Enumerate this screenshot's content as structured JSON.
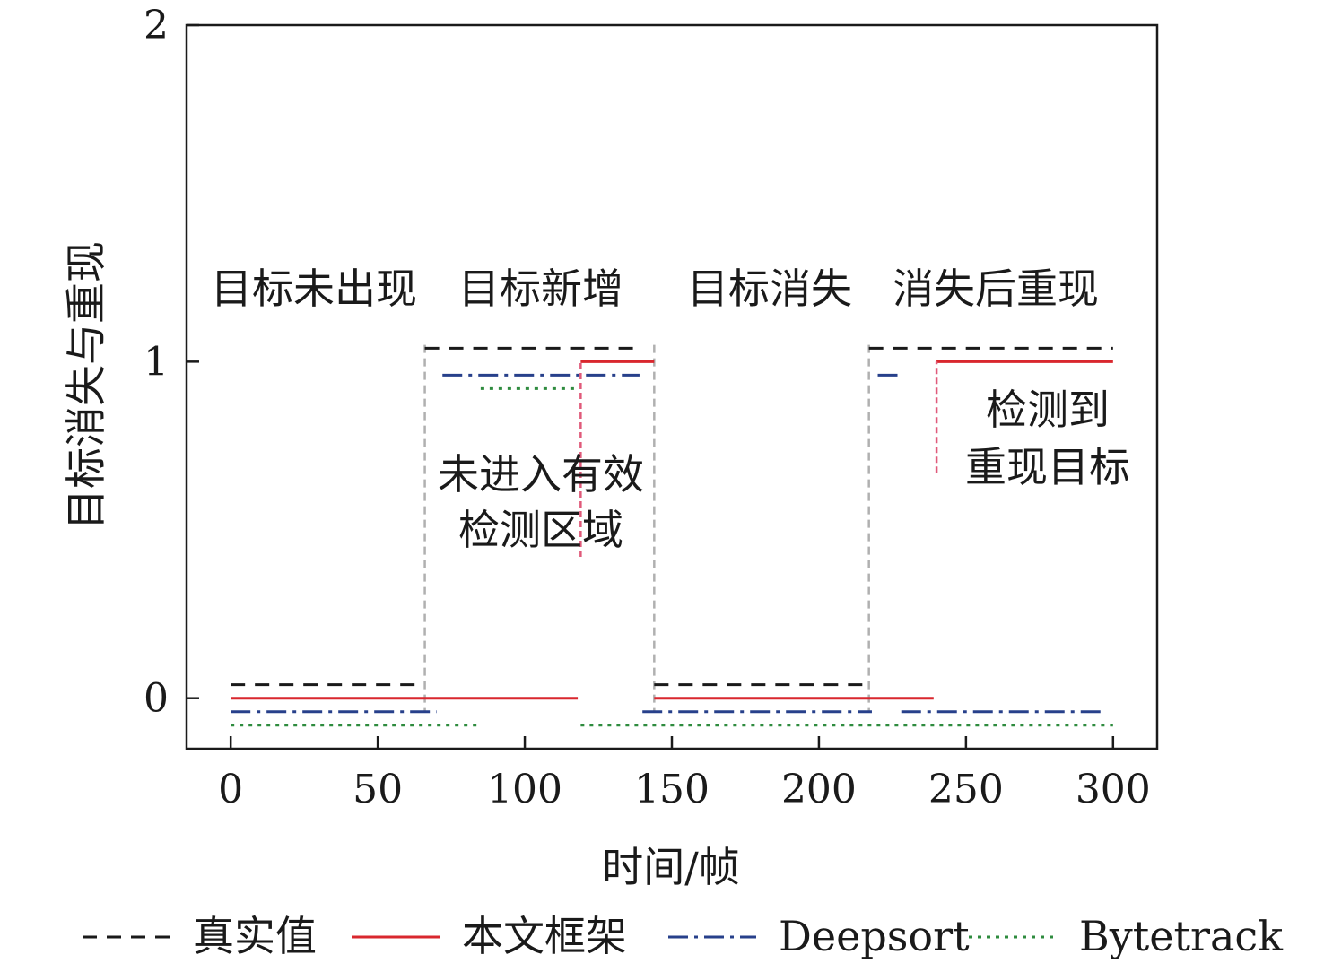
{
  "chart_data": {
    "type": "line",
    "title": "",
    "xlabel": "时间/帧",
    "ylabel": "目标消失与重现",
    "xlim": [
      -15,
      315
    ],
    "ylim": [
      -0.15,
      2
    ],
    "xticks": [
      0,
      50,
      100,
      150,
      200,
      250,
      300
    ],
    "yticks": [
      0,
      1,
      2
    ],
    "grid": false,
    "legend_position": "bottom",
    "region_labels": [
      "目标未出现",
      "目标新增",
      "目标消失",
      "消失后重现"
    ],
    "annotations": [
      "未进入有效",
      "检测区域",
      "检测到",
      "重现目标"
    ],
    "phase_boundaries": [
      66,
      144,
      217
    ],
    "series": [
      {
        "name": "真实值",
        "color": "#1a1a1a",
        "style": "dashed",
        "offset": 0.04,
        "segments": [
          [
            [
              0,
              0
            ],
            [
              65,
              0
            ]
          ],
          [
            [
              66,
              1
            ],
            [
              140,
              1
            ]
          ],
          [
            [
              144,
              0
            ],
            [
              216,
              0
            ]
          ],
          [
            [
              217,
              1
            ],
            [
              300,
              1
            ]
          ]
        ]
      },
      {
        "name": "本文框架",
        "color": "#d9272e",
        "style": "solid",
        "offset": 0,
        "segments": [
          [
            [
              0,
              0
            ],
            [
              118,
              0
            ]
          ],
          [
            [
              119,
              1
            ],
            [
              144,
              1
            ]
          ],
          [
            [
              144,
              0
            ],
            [
              239,
              0
            ]
          ],
          [
            [
              240,
              1
            ],
            [
              300,
              1
            ]
          ]
        ]
      },
      {
        "name": "Deepsort",
        "color": "#27408b",
        "style": "dashdot",
        "offset": -0.04,
        "segments": [
          [
            [
              0,
              0
            ],
            [
              70,
              0
            ]
          ],
          [
            [
              72,
              1
            ],
            [
              139,
              1
            ]
          ],
          [
            [
              140,
              0
            ],
            [
              218,
              0
            ]
          ],
          [
            [
              220,
              1
            ],
            [
              227,
              1
            ]
          ],
          [
            [
              228,
              0
            ],
            [
              297,
              0
            ]
          ]
        ]
      },
      {
        "name": "Bytetrack",
        "color": "#2e8b3e",
        "style": "dotted",
        "offset": -0.08,
        "segments": [
          [
            [
              0,
              0
            ],
            [
              85,
              0
            ]
          ],
          [
            [
              85,
              1
            ],
            [
              118,
              1
            ]
          ],
          [
            [
              119,
              0
            ],
            [
              300,
              0
            ]
          ]
        ]
      }
    ],
    "transitions": [
      {
        "x": 119,
        "from": 0.42,
        "to": 1,
        "color": "#e05a7a"
      },
      {
        "x": 240,
        "from": 0.67,
        "to": 1,
        "color": "#e05a7a"
      }
    ]
  }
}
